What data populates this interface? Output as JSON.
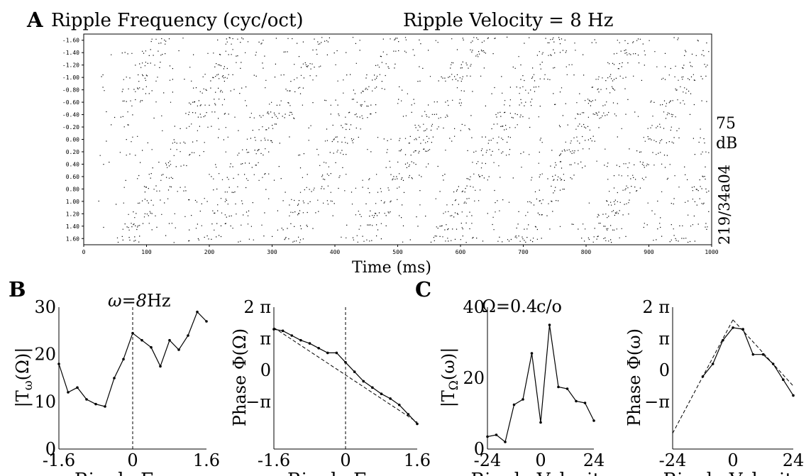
{
  "panel_a": {
    "letter": "A",
    "title_left": "Ripple Frequency (cyc/oct)",
    "title_right": "Ripple Velocity = 8 Hz",
    "xlabel": "Time (ms)",
    "side_label_top": "75",
    "side_label_mid": "dB",
    "side_label_bottom": "219/34a04"
  },
  "panel_b": {
    "letter": "B",
    "annotation_prefix": "ω=8",
    "annotation_unit": "Hz"
  },
  "panel_c": {
    "letter": "C",
    "annotation_prefix": "Ω=0.4",
    "annotation_unit": "c/o"
  },
  "chart_data": [
    {
      "id": "A-raster",
      "type": "scatter",
      "xlabel": "Time (ms)",
      "xlim": [
        0,
        1000
      ],
      "xticks": [
        0,
        100,
        200,
        300,
        400,
        500,
        600,
        700,
        800,
        900,
        1000
      ],
      "xtick_labels": [
        "0",
        "100",
        "200",
        "300",
        "400",
        "500",
        "600",
        "700",
        "800",
        "900",
        "1000"
      ],
      "yticks": [
        -1.6,
        -1.4,
        -1.2,
        -1.0,
        -0.8,
        -0.6,
        -0.4,
        -0.2,
        0.0,
        0.2,
        0.4,
        0.6,
        0.8,
        1.0,
        1.2,
        1.4,
        1.6
      ],
      "ytick_labels": [
        "-1.60",
        "-1.40",
        "-1.20",
        "-1.00",
        "-0.80",
        "-0.60",
        "-0.40",
        "-0.20",
        "0.00",
        "0.20",
        "0.40",
        "0.60",
        "0.80",
        "1.00",
        "1.20",
        "1.40",
        "1.60"
      ],
      "ylim": [
        -1.7,
        1.7
      ],
      "y_inverted": true,
      "dot_color": "#000000"
    },
    {
      "id": "B-magnitude",
      "type": "line",
      "ylabel": "|T_ω(Ω)|",
      "xlabel": "Ripple Freq.",
      "xlim": [
        -1.6,
        1.6
      ],
      "ylim": [
        0,
        30
      ],
      "xtick_labels": [
        "-1.6",
        "0",
        "1.6"
      ],
      "ytick_labels": [
        "0",
        "10",
        "20",
        "30"
      ],
      "zero_line": true,
      "x": [
        -1.6,
        -1.4,
        -1.2,
        -1.0,
        -0.8,
        -0.6,
        -0.4,
        -0.2,
        0.0,
        0.2,
        0.4,
        0.6,
        0.8,
        1.0,
        1.2,
        1.4,
        1.6
      ],
      "values": [
        18,
        12,
        13,
        10.5,
        9.5,
        9,
        15,
        19,
        24.5,
        23,
        21.5,
        17.5,
        23,
        21,
        24,
        29,
        27
      ]
    },
    {
      "id": "B-phase",
      "type": "line",
      "ylabel": "Phase Φ(Ω)",
      "xlabel": "Ripple Freq.",
      "xlim": [
        -1.6,
        1.6
      ],
      "ylim": [
        -2.5,
        2
      ],
      "ytick_labels": [
        "2 π",
        "π",
        "0",
        "−π"
      ],
      "xtick_labels": [
        "-1.6",
        "0",
        "1.6"
      ],
      "zero_line": true,
      "x": [
        -1.6,
        -1.4,
        -1.2,
        -1.0,
        -0.8,
        -0.6,
        -0.4,
        -0.2,
        0.0,
        0.2,
        0.4,
        0.6,
        0.8,
        1.0,
        1.2,
        1.4,
        1.6
      ],
      "values": [
        1.3,
        1.25,
        1.1,
        0.95,
        0.85,
        0.7,
        0.55,
        0.55,
        0.25,
        -0.05,
        -0.35,
        -0.55,
        -0.75,
        -0.9,
        -1.1,
        -1.4,
        -1.7
      ],
      "fit_line": [
        [
          -1.6,
          1.35
        ],
        [
          1.6,
          -1.65
        ]
      ]
    },
    {
      "id": "C-magnitude",
      "type": "line",
      "ylabel": "|T_Ω(ω)|",
      "xlabel": "Ripple Velocity",
      "xlim": [
        -24,
        24
      ],
      "ylim": [
        0,
        40
      ],
      "xtick_labels": [
        "-24",
        "0",
        "24"
      ],
      "ytick_labels": [
        "0",
        "20",
        "40"
      ],
      "x": [
        -24,
        -20,
        -16,
        -12,
        -8,
        -4,
        0,
        4,
        8,
        12,
        16,
        20,
        24
      ],
      "values": [
        3.5,
        4,
        2,
        12.5,
        14,
        27,
        7.5,
        35,
        17.5,
        17,
        13.5,
        13,
        8
      ]
    },
    {
      "id": "C-phase",
      "type": "line",
      "ylabel": "Phase Φ(ω)",
      "xlabel": "Ripple Velocity",
      "xlim": [
        -24,
        24
      ],
      "ylim": [
        -2.5,
        2
      ],
      "ytick_labels": [
        "2 π",
        "π",
        "0",
        "−π"
      ],
      "xtick_labels": [
        "-24",
        "0",
        "24"
      ],
      "x": [
        -12,
        -8,
        -4,
        0,
        4,
        8,
        12,
        16,
        20,
        24
      ],
      "values": [
        -0.2,
        0.2,
        0.95,
        1.35,
        1.3,
        0.5,
        0.5,
        0.2,
        -0.3,
        -0.8
      ],
      "fit_lines": [
        [
          [
            -24,
            -2
          ],
          [
            0,
            1.6
          ]
        ],
        [
          [
            0,
            1.6
          ],
          [
            24,
            -0.5
          ]
        ]
      ]
    }
  ]
}
